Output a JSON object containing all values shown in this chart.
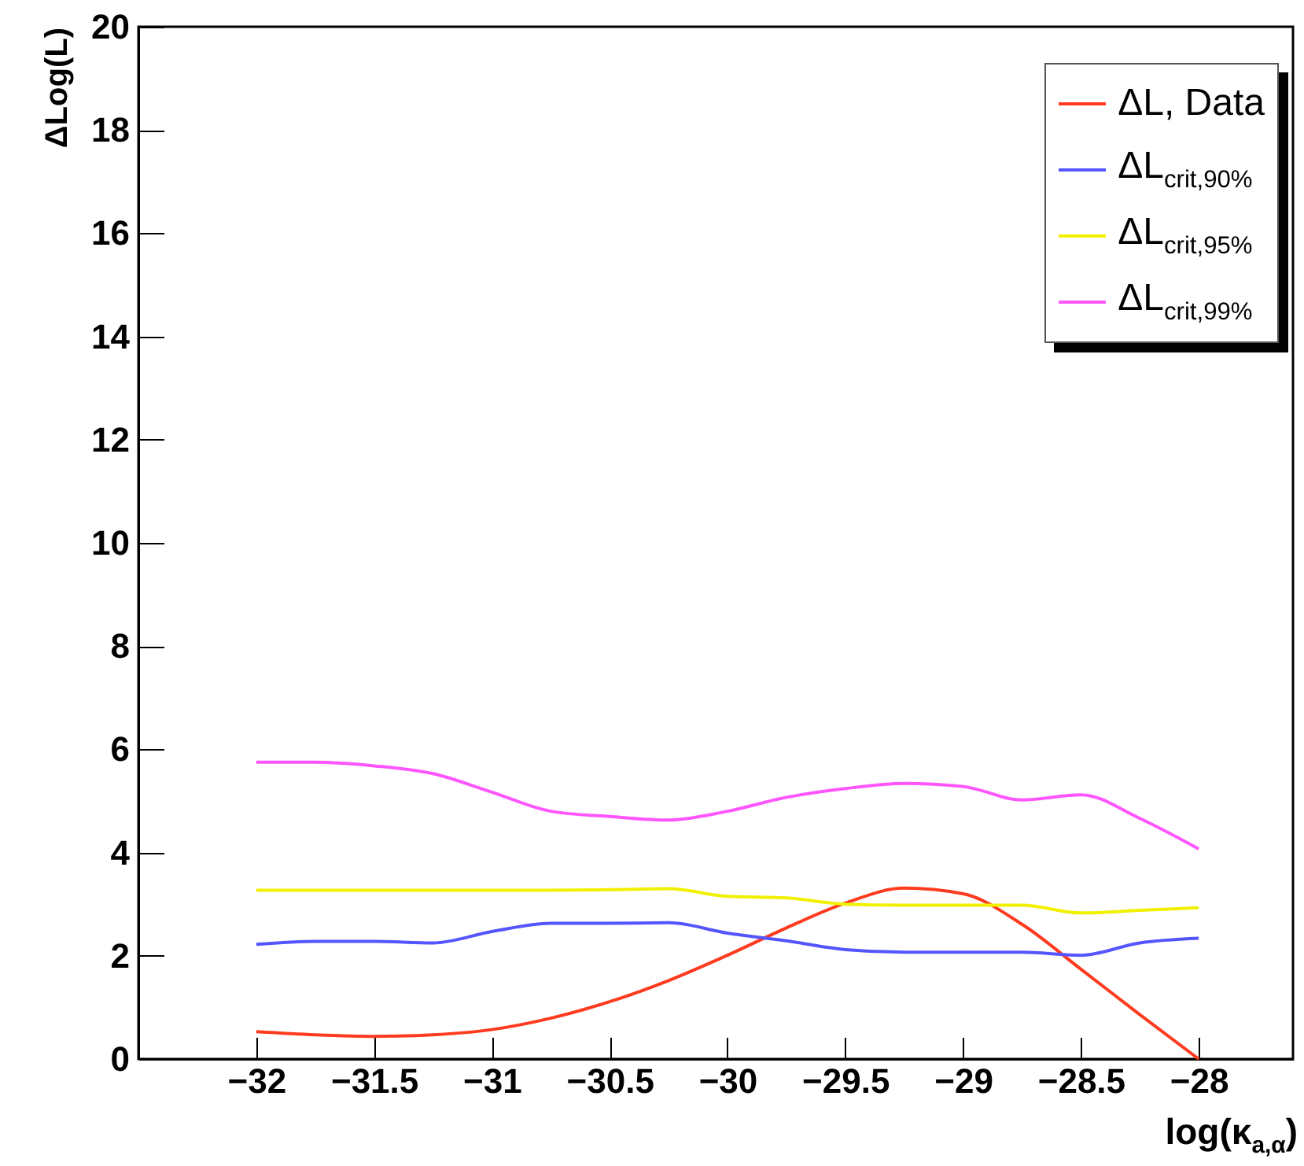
{
  "chart_data": {
    "type": "line",
    "ylabel": "ΔLog(L)",
    "xlabel": "log(κ$_{a,α}$)",
    "x": [
      -32,
      -31.75,
      -31.5,
      -31.25,
      -31,
      -30.75,
      -30.5,
      -30.25,
      -30,
      -29.75,
      -29.5,
      -29.25,
      -29,
      -28.75,
      -28.5,
      -28.25,
      -28
    ],
    "series": [
      {
        "name": "ΔL, Data",
        "color": "#ff3b1f",
        "values": [
          0.53,
          0.47,
          0.44,
          0.47,
          0.57,
          0.79,
          1.11,
          1.52,
          2.01,
          2.54,
          3.02,
          3.31,
          3.2,
          2.61,
          1.74,
          0.86,
          0
        ]
      },
      {
        "name": "ΔL$_{crit,90%}$",
        "color": "#5555ff",
        "values": [
          2.22,
          2.28,
          2.28,
          2.25,
          2.47,
          2.63,
          2.63,
          2.64,
          2.44,
          2.29,
          2.12,
          2.07,
          2.07,
          2.07,
          2.01,
          2.25,
          2.34
        ]
      },
      {
        "name": "ΔL$_{crit,95%}$",
        "color": "#f0f000",
        "values": [
          3.27,
          3.27,
          3.27,
          3.27,
          3.27,
          3.27,
          3.28,
          3.3,
          3.15,
          3.12,
          3,
          2.98,
          2.98,
          2.98,
          2.83,
          2.88,
          2.93
        ]
      },
      {
        "name": "ΔL$_{crit,99%}$",
        "color": "#ff55ff",
        "values": [
          5.75,
          5.75,
          5.68,
          5.53,
          5.17,
          4.8,
          4.7,
          4.63,
          4.8,
          5.07,
          5.24,
          5.34,
          5.28,
          5.02,
          5.12,
          4.66,
          4.07
        ]
      }
    ],
    "xlim": [
      -32.5,
      -27.6
    ],
    "ylim": [
      0,
      20
    ],
    "xticks": [
      -32,
      -31.5,
      -31,
      -30.5,
      -30,
      -29.5,
      -29,
      -28.5,
      -28
    ],
    "yticks": [
      0,
      2,
      4,
      6,
      8,
      10,
      12,
      14,
      16,
      18,
      20
    ],
    "legend": "top right",
    "grid": false,
    "marker": "none",
    "line_style": "solid"
  }
}
